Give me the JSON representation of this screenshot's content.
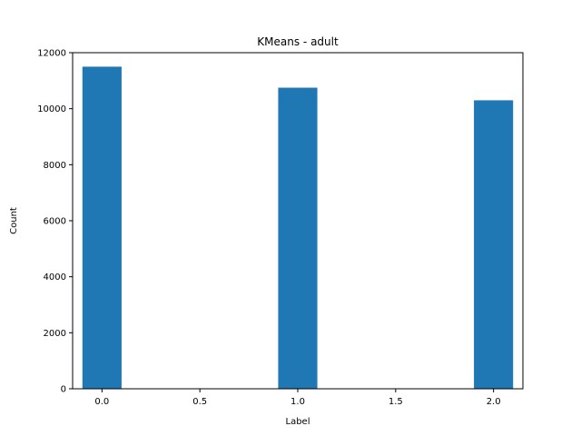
{
  "chart_data": {
    "type": "bar",
    "title": "KMeans - adult",
    "xlabel": "Label",
    "ylabel": "Count",
    "x": [
      0,
      1,
      2
    ],
    "values": [
      11500,
      10750,
      10300
    ],
    "bar_width": 0.2,
    "xlim": [
      -0.15,
      2.15
    ],
    "ylim": [
      0,
      12000
    ],
    "xticks": [
      0.0,
      0.5,
      1.0,
      1.5,
      2.0
    ],
    "xtick_labels": [
      "0.0",
      "0.5",
      "1.0",
      "1.5",
      "2.0"
    ],
    "yticks": [
      0,
      2000,
      4000,
      6000,
      8000,
      10000,
      12000
    ],
    "ytick_labels": [
      "0",
      "2000",
      "4000",
      "6000",
      "8000",
      "10000",
      "12000"
    ],
    "grid": false,
    "bar_color": "#1f77b4"
  }
}
